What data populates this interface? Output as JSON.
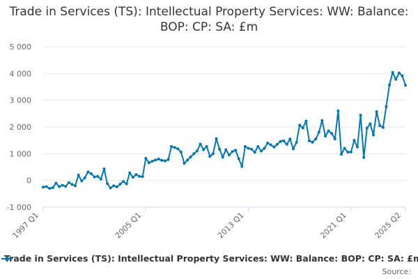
{
  "chart_data": {
    "type": "line",
    "title": "Trade in Services (TS): Intellectual Property Services: WW: Balance: BOP: CP: SA: £m",
    "xlabel": "",
    "ylabel": "",
    "ylim": [
      -1000,
      5000
    ],
    "yticks": [
      "5 000",
      "4 000",
      "3 000",
      "2 000",
      "1 000",
      "0",
      "-1 000"
    ],
    "ytick_values": [
      5000,
      4000,
      3000,
      2000,
      1000,
      0,
      -1000
    ],
    "xtick_labels": [
      "1997 Q1",
      "2005 Q1",
      "2013 Q1",
      "2021 Q1",
      "2025 Q2"
    ],
    "xtick_index": [
      0,
      32,
      64,
      96,
      113
    ],
    "grid": "horizontal",
    "legend_position": "bottom",
    "color": "#0077b3",
    "series": [
      {
        "name": "Trade in Services (TS): Intellectual Property Services: WW: Balance: BOP: CP: SA: £m",
        "values": [
          -250,
          -230,
          -300,
          -270,
          -100,
          -230,
          -180,
          -220,
          -80,
          -150,
          -200,
          200,
          -20,
          100,
          320,
          250,
          130,
          150,
          50,
          430,
          -120,
          -280,
          -200,
          -240,
          -140,
          -40,
          -130,
          280,
          120,
          220,
          150,
          140,
          830,
          660,
          720,
          760,
          800,
          750,
          730,
          780,
          1270,
          1230,
          1180,
          1060,
          640,
          760,
          880,
          1000,
          1100,
          1360,
          1150,
          1270,
          900,
          1000,
          1560,
          1170,
          870,
          1150,
          950,
          1080,
          1130,
          810,
          520,
          1270,
          1200,
          1170,
          1050,
          1270,
          1100,
          1200,
          1400,
          1330,
          1250,
          1350,
          1460,
          1480,
          1350,
          1550,
          1180,
          1420,
          2070,
          1960,
          2220,
          1480,
          1430,
          1550,
          1800,
          2240,
          1660,
          1850,
          1760,
          1550,
          2600,
          980,
          1200,
          1060,
          1060,
          1500,
          1250,
          2440,
          860,
          1960,
          2120,
          1700,
          2570,
          2050,
          1980,
          2760,
          3570,
          4040,
          3780,
          4020,
          3910,
          3560
        ]
      }
    ]
  },
  "legend": {
    "label": "Trade in Services (TS): Intellectual Property Services: WW: Balance: BOP: CP: SA: £m"
  },
  "source": {
    "label": "Source:"
  }
}
